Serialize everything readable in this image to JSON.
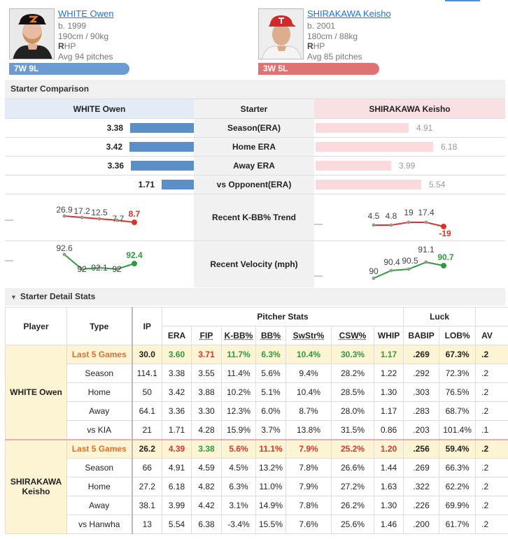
{
  "players": {
    "white": {
      "name": "WHITE Owen",
      "born": "b. 1999",
      "size": "190cm / 90kg",
      "throws_bold": "R",
      "throws_rest": "HP",
      "avg_pitches": "Avg 94 pitches",
      "record": "7W 9L",
      "team_color": "#6b9bd0"
    },
    "shirakawa": {
      "name": "SHIRAKAWA Keisho",
      "born": "b. 2001",
      "size": "180cm / 88kg",
      "throws_bold": "R",
      "throws_rest": "HP",
      "avg_pitches": "Avg 85 pitches",
      "record": "3W 5L",
      "team_color": "#df7272"
    }
  },
  "comparison": {
    "title": "Starter Comparison",
    "left_header": "WHITE Owen",
    "mid_header": "Starter",
    "right_header": "SHIRAKAWA Keisho",
    "rows": [
      {
        "label": "Season(ERA)",
        "left": "3.38",
        "right": "4.91",
        "left_num": 3.38,
        "right_num": 4.91
      },
      {
        "label": "Home ERA",
        "left": "3.42",
        "right": "6.18",
        "left_num": 3.42,
        "right_num": 6.18
      },
      {
        "label": "Away ERA",
        "left": "3.36",
        "right": "3.99",
        "left_num": 3.36,
        "right_num": 3.99
      },
      {
        "label": "vs Opponent(ERA)",
        "left": "1.71",
        "right": "5.54",
        "left_num": 1.71,
        "right_num": 5.54
      }
    ],
    "kbb_label": "Recent K-BB% Trend",
    "kbb_left": [
      "26.9",
      "17.2",
      "12.5",
      "-7.7",
      "8.7"
    ],
    "kbb_right": [
      "4.5",
      "4.8",
      "19",
      "17.4",
      "-19"
    ],
    "velo_label": "Recent Velocity (mph)",
    "velo_left": [
      "92.6",
      "92",
      "92.1",
      "92",
      "92.4"
    ],
    "velo_right": [
      "90",
      "90.4",
      "90.5",
      "91.1",
      "90.7"
    ],
    "colors": {
      "left_bar": "#5b8fc7",
      "right_bar": "#fadadd",
      "trend_up": "#2e9b3e",
      "trend_down": "#d9342b",
      "line_red": "#d9342b",
      "line_green": "#2e9b3e"
    }
  },
  "detail": {
    "title": "Starter Detail Stats",
    "headers": {
      "player": "Player",
      "type": "Type",
      "ip": "IP",
      "pitcher_stats": "Pitcher Stats",
      "luck": "Luck",
      "era": "ERA",
      "fip": "FIP",
      "kbb": "K-BB%",
      "bb": "BB%",
      "swstr": "SwStr%",
      "csw": "CSW%",
      "whip": "WHIP",
      "babip": "BABIP",
      "lob": "LOB%",
      "extra": "AV"
    },
    "white_label": "WHITE Owen",
    "shira_label": "SHIRAKAWA Keisho",
    "white_rows": [
      {
        "type": "Last 5 Games",
        "ip": "30.0",
        "era": "3.60",
        "fip": "3.71",
        "kbb": "11.7%",
        "bb": "6.3%",
        "swstr": "10.4%",
        "csw": "30.3%",
        "whip": "1.17",
        "babip": ".269",
        "lob": "67.3%",
        "x": ".2"
      },
      {
        "type": "Season",
        "ip": "114.1",
        "era": "3.38",
        "fip": "3.55",
        "kbb": "11.4%",
        "bb": "5.6%",
        "swstr": "9.4%",
        "csw": "28.2%",
        "whip": "1.22",
        "babip": ".292",
        "lob": "72.3%",
        "x": ".2"
      },
      {
        "type": "Home",
        "ip": "50",
        "era": "3.42",
        "fip": "3.88",
        "kbb": "10.2%",
        "bb": "5.1%",
        "swstr": "10.4%",
        "csw": "28.5%",
        "whip": "1.30",
        "babip": ".303",
        "lob": "76.5%",
        "x": ".2"
      },
      {
        "type": "Away",
        "ip": "64.1",
        "era": "3.36",
        "fip": "3.30",
        "kbb": "12.3%",
        "bb": "6.0%",
        "swstr": "8.7%",
        "csw": "28.0%",
        "whip": "1.17",
        "babip": ".283",
        "lob": "68.7%",
        "x": ".2"
      },
      {
        "type": "vs KIA",
        "ip": "21",
        "era": "1.71",
        "fip": "4.28",
        "kbb": "15.9%",
        "bb": "3.7%",
        "swstr": "13.8%",
        "csw": "31.5%",
        "whip": "0.86",
        "babip": ".203",
        "lob": "101.4%",
        "x": ".1"
      }
    ],
    "shira_rows": [
      {
        "type": "Last 5 Games",
        "ip": "26.2",
        "era": "4.39",
        "fip": "3.38",
        "kbb": "5.6%",
        "bb": "11.1%",
        "swstr": "7.9%",
        "csw": "25.2%",
        "whip": "1.20",
        "babip": ".256",
        "lob": "59.4%",
        "x": ".2"
      },
      {
        "type": "Season",
        "ip": "66",
        "era": "4.91",
        "fip": "4.59",
        "kbb": "4.5%",
        "bb": "13.2%",
        "swstr": "7.8%",
        "csw": "26.6%",
        "whip": "1.44",
        "babip": ".269",
        "lob": "66.3%",
        "x": ".2"
      },
      {
        "type": "Home",
        "ip": "27.2",
        "era": "6.18",
        "fip": "4.82",
        "kbb": "6.3%",
        "bb": "11.0%",
        "swstr": "7.9%",
        "csw": "27.2%",
        "whip": "1.63",
        "babip": ".322",
        "lob": "62.2%",
        "x": ".2"
      },
      {
        "type": "Away",
        "ip": "38.1",
        "era": "3.99",
        "fip": "4.42",
        "kbb": "3.1%",
        "bb": "14.9%",
        "swstr": "7.8%",
        "csw": "26.2%",
        "whip": "1.30",
        "babip": ".226",
        "lob": "69.9%",
        "x": ".2"
      },
      {
        "type": "vs Hanwha",
        "ip": "13",
        "era": "5.54",
        "fip": "6.38",
        "kbb": "-3.4%",
        "bb": "15.5%",
        "swstr": "7.6%",
        "csw": "25.6%",
        "whip": "1.46",
        "babip": ".200",
        "lob": "61.7%",
        "x": ".2"
      }
    ]
  }
}
